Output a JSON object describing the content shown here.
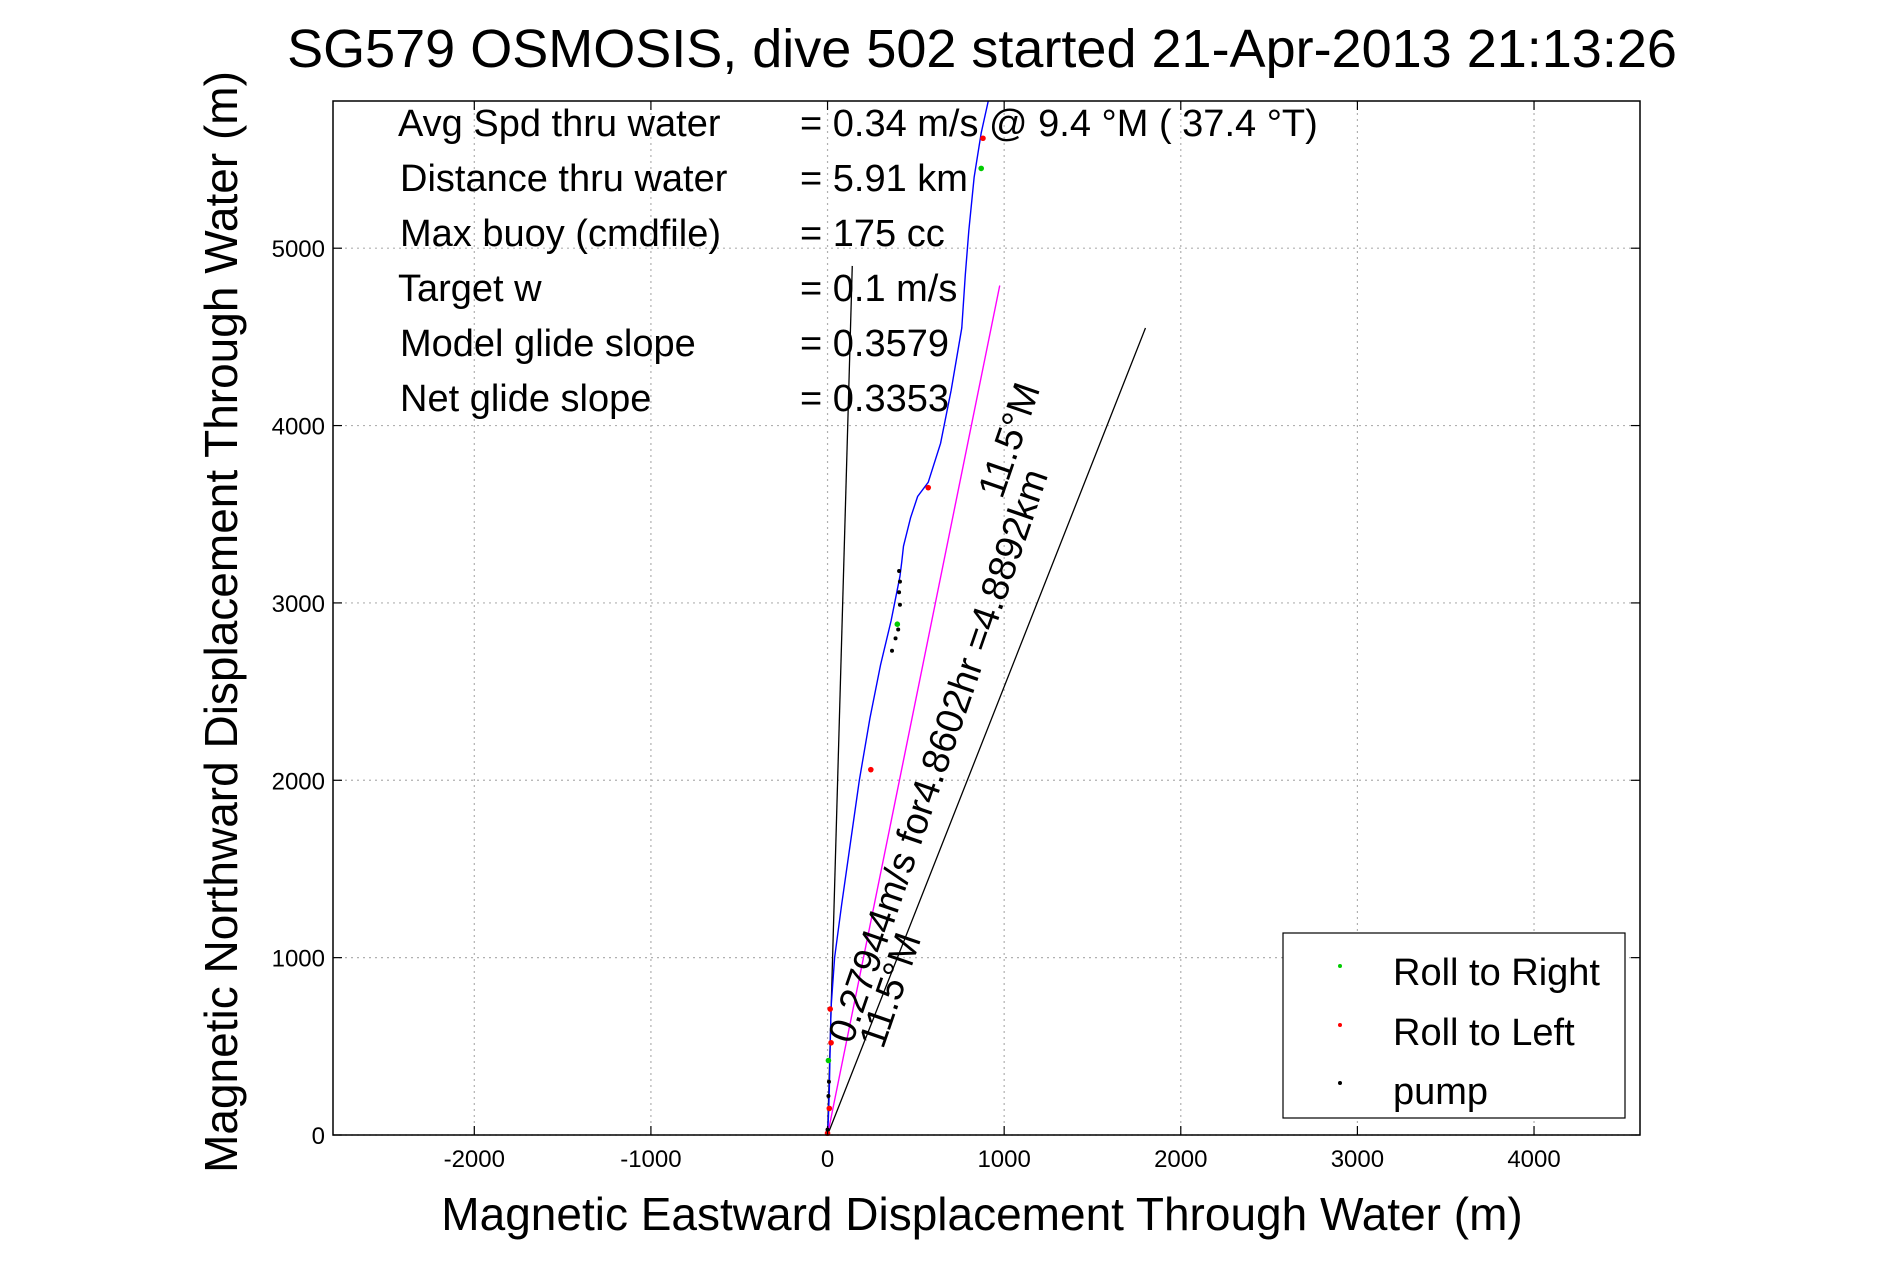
{
  "chart_data": {
    "type": "line",
    "title": "SG579 OSMOSIS, dive 502 started 21-Apr-2013 21:13:26",
    "xlabel": "Magnetic Eastward Displacement Through Water (m)",
    "ylabel": "Magnetic Northward Displacement Through Water (m)",
    "xlim": [
      -2800,
      4600
    ],
    "ylim": [
      0,
      5830
    ],
    "xticks": [
      -2000,
      -1000,
      0,
      1000,
      2000,
      3000,
      4000
    ],
    "yticks": [
      0,
      1000,
      2000,
      3000,
      4000,
      5000
    ],
    "grid": true,
    "legend_position": "bottom-right",
    "annotations": [
      {
        "label": "Avg Spd thru water",
        "value": "=  0.34 m/s @   9.4 °M ( 37.4 °T)"
      },
      {
        "label": "Distance thru water",
        "value": "=  5.91 km"
      },
      {
        "label": "Max buoy (cmdfile)",
        "value": "= 175 cc"
      },
      {
        "label": "Target w",
        "value": "= 0.1 m/s"
      },
      {
        "label": "Model glide slope",
        "value": "= 0.3579"
      },
      {
        "label": "Net glide slope",
        "value": "= 0.3353"
      }
    ],
    "current_text": "0.27944m/s for4.8602hr =4.8892km",
    "heading_text_1": "11.5°M",
    "heading_text_2": "11.5°M",
    "series": [
      {
        "name": "track",
        "color": "#0000ff",
        "x": [
          0,
          5,
          10,
          15,
          20,
          40,
          80,
          130,
          180,
          240,
          300,
          360,
          390,
          410,
          420,
          430,
          470,
          510,
          570,
          640,
          700,
          760,
          780,
          800,
          830,
          870,
          910
        ],
        "y": [
          0,
          100,
          250,
          500,
          720,
          1000,
          1300,
          1650,
          2000,
          2350,
          2650,
          2900,
          3050,
          3150,
          3230,
          3320,
          3480,
          3600,
          3680,
          3900,
          4200,
          4550,
          4850,
          5100,
          5400,
          5650,
          5830
        ]
      },
      {
        "name": "current",
        "color": "#ff00ff",
        "x": [
          0,
          975
        ],
        "y": [
          0,
          4790
        ]
      }
    ],
    "reference_lines": [
      {
        "color": "#000000",
        "x": [
          0,
          140
        ],
        "y": [
          0,
          4900
        ]
      },
      {
        "color": "#000000",
        "x": [
          0,
          1800
        ],
        "y": [
          0,
          4550
        ]
      }
    ],
    "points": [
      {
        "x": 0,
        "y": 10,
        "type": "Roll to Left"
      },
      {
        "x": 10,
        "y": 150,
        "type": "Roll to Left"
      },
      {
        "x": 20,
        "y": 520,
        "type": "Roll to Left"
      },
      {
        "x": 15,
        "y": 710,
        "type": "Roll to Left"
      },
      {
        "x": 245,
        "y": 2060,
        "type": "Roll to Left"
      },
      {
        "x": 570,
        "y": 3650,
        "type": "Roll to Left"
      },
      {
        "x": 880,
        "y": 5620,
        "type": "Roll to Left"
      },
      {
        "x": 5,
        "y": 420,
        "type": "Roll to Right"
      },
      {
        "x": 395,
        "y": 2880,
        "type": "Roll to Right"
      },
      {
        "x": 870,
        "y": 5450,
        "type": "Roll to Right"
      },
      {
        "x": 0,
        "y": 30,
        "type": "pump"
      },
      {
        "x": 5,
        "y": 220,
        "type": "pump"
      },
      {
        "x": 8,
        "y": 300,
        "type": "pump"
      },
      {
        "x": 365,
        "y": 2730,
        "type": "pump"
      },
      {
        "x": 385,
        "y": 2800,
        "type": "pump"
      },
      {
        "x": 400,
        "y": 2850,
        "type": "pump"
      },
      {
        "x": 410,
        "y": 2990,
        "type": "pump"
      },
      {
        "x": 405,
        "y": 3060,
        "type": "pump"
      },
      {
        "x": 410,
        "y": 3120,
        "type": "pump"
      },
      {
        "x": 405,
        "y": 3180,
        "type": "pump"
      }
    ],
    "legend": [
      {
        "label": "Roll to Right",
        "color": "#00cc00"
      },
      {
        "label": "Roll to Left",
        "color": "#ff0000"
      },
      {
        "label": "pump",
        "color": "#000000"
      }
    ]
  }
}
